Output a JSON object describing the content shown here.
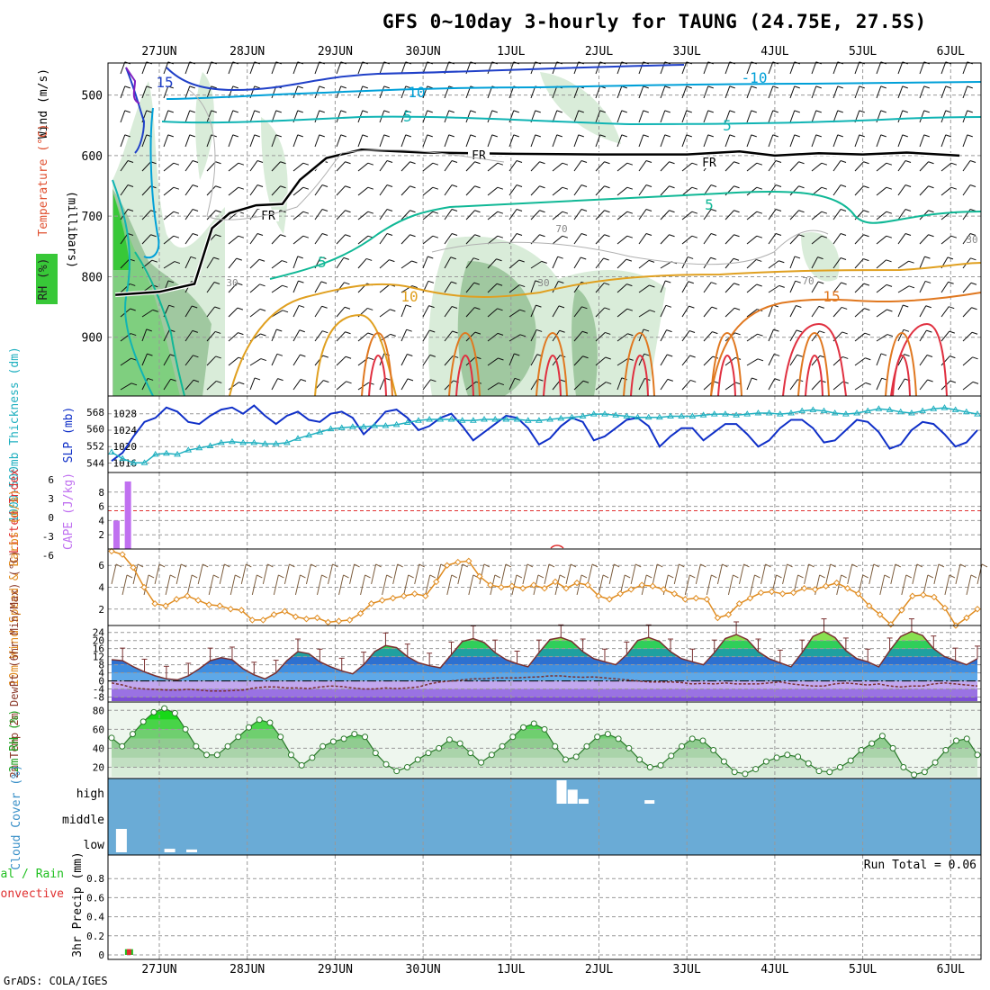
{
  "title": "GFS 0~10day 3-hourly for TAUNG (24.75E, 27.5S)",
  "credit": "GrADS: COLA/IGES",
  "colors": {
    "wind_10": "#00a0d8",
    "wind_15": "#2040c8",
    "wind_5": "#10b4b4",
    "temp_5": "#10b896",
    "freezing": "#000000",
    "temp_10": "#e0a020",
    "temp_15": "#e07820",
    "temp_20": "#e03040",
    "rh_light": "#d9ecd9",
    "rh_mid": "#a0c8a0",
    "rh_dark": "#38c838",
    "slp": "#1030c8",
    "thickness": "#20b0c0",
    "cape": "#c070f0",
    "lifted": "#e03030",
    "wind10": "#e08c20",
    "barb": "#7a5a3a",
    "cloud": "#6aabd6",
    "rain_total": "#20c020",
    "rain_conv": "#e03030"
  },
  "chart_data": [
    {
      "panel": "upper-air",
      "type": "contour",
      "ylabel": "(millibars)",
      "legend": [
        "Wind (m/s)",
        "Temperature (°C)",
        "RH (%)"
      ],
      "x_ticks": [
        "27JUN",
        "28JUN",
        "29JUN",
        "30JUN",
        "1JUL",
        "2JUL",
        "3JUL",
        "4JUL",
        "5JUL",
        "6JUL"
      ],
      "y_ticks": [
        500,
        600,
        700,
        800,
        900
      ],
      "ylim": [
        1000,
        450
      ],
      "contour_labels": {
        "wind": [
          "15",
          "10",
          "-10",
          "5",
          "5"
        ],
        "temperature": [
          "5",
          "5",
          "10",
          "15"
        ],
        "freezing": [
          "FR",
          "FR",
          "FR"
        ],
        "rh": [
          "30",
          "30",
          "70",
          "70",
          "30"
        ]
      },
      "freezing_level_mb": [
        [
          0.0,
          830
        ],
        [
          0.5,
          825
        ],
        [
          0.9,
          812
        ],
        [
          1.1,
          720
        ],
        [
          1.3,
          695
        ],
        [
          1.6,
          682
        ],
        [
          1.9,
          680
        ],
        [
          2.1,
          640
        ],
        [
          2.4,
          604
        ],
        [
          2.8,
          590
        ],
        [
          3.5,
          595
        ],
        [
          4.5,
          597
        ],
        [
          5.5,
          598
        ],
        [
          6.5,
          598
        ],
        [
          7.1,
          593
        ],
        [
          7.5,
          600
        ],
        [
          8.0,
          596
        ],
        [
          8.5,
          598
        ],
        [
          9.0,
          595
        ],
        [
          9.6,
          600
        ]
      ]
    },
    {
      "panel": "thickness-slp",
      "type": "line",
      "ylabel_left": "1000-500mb Thickness (dm)",
      "ylabel_right": "SLP (mb)",
      "y_ticks_left": [
        544,
        552,
        560,
        568
      ],
      "y_ticks_right": [
        1016,
        1020,
        1024,
        1028
      ],
      "series": [
        {
          "name": "SLP (mb)",
          "ylim": [
            1015,
            1031
          ],
          "values": [
            1016.5,
            1018.5,
            1022.5,
            1026.0,
            1027.0,
            1029.5,
            1028.5,
            1026.0,
            1025.5,
            1027.5,
            1029.0,
            1029.5,
            1028.0,
            1030.0,
            1027.5,
            1025.5,
            1027.5,
            1028.5,
            1026.5,
            1026.0,
            1028.0,
            1028.5,
            1027.0,
            1023.0,
            1025.5,
            1028.5,
            1029.0,
            1027.0,
            1024.0,
            1025.0,
            1027.0,
            1028.0,
            1025.0,
            1021.5,
            1023.5,
            1025.5,
            1027.5,
            1027.0,
            1024.5,
            1020.5,
            1022.0,
            1025.0,
            1027.0,
            1026.0,
            1021.5,
            1022.5,
            1024.5,
            1026.5,
            1027.0,
            1025.0,
            1020.0,
            1022.5,
            1024.5,
            1024.5,
            1021.5,
            1023.5,
            1025.5,
            1025.5,
            1023.0,
            1020.0,
            1021.5,
            1024.5,
            1026.5,
            1026.5,
            1024.5,
            1021.0,
            1021.5,
            1024.0,
            1026.5,
            1026.0,
            1023.5,
            1019.5,
            1020.5,
            1024.0,
            1026.0,
            1025.5,
            1023.0,
            1020.0,
            1021.0,
            1024.0
          ]
        },
        {
          "name": "1000-500mb Thickness (dm)",
          "ylim": [
            542,
            573
          ],
          "values": [
            549.0,
            546.0,
            544.0,
            544.0,
            548.0,
            548.5,
            548.0,
            550.0,
            551.0,
            552.0,
            553.5,
            554.0,
            553.5,
            553.5,
            553.0,
            553.0,
            553.5,
            555.5,
            557.0,
            558.5,
            560.0,
            560.5,
            561.0,
            561.0,
            561.5,
            561.5,
            562.0,
            563.0,
            564.0,
            564.5,
            564.5,
            564.5,
            564.0,
            564.0,
            564.5,
            564.5,
            564.5,
            564.5,
            564.0,
            564.0,
            564.5,
            565.0,
            565.5,
            566.0,
            567.0,
            567.0,
            566.5,
            566.0,
            565.5,
            565.5,
            565.5,
            566.0,
            566.0,
            566.0,
            566.5,
            567.0,
            567.0,
            566.5,
            567.0,
            567.5,
            567.5,
            567.0,
            567.5,
            568.5,
            569.0,
            568.5,
            567.5,
            567.0,
            567.5,
            568.5,
            569.5,
            569.0,
            568.0,
            567.5,
            568.5,
            569.5,
            570.0,
            569.0,
            568.0,
            567.0
          ]
        }
      ]
    },
    {
      "panel": "cape-li",
      "type": "bar",
      "ylabel_left": "Lifted Index",
      "ylabel_right": "CAPE (J/kg)",
      "y_ticks_left": [
        "6",
        "3",
        "0",
        "-3",
        "-6"
      ],
      "y_ticks_right": [
        2,
        4,
        6,
        8
      ],
      "ylim_cape": [
        0,
        10
      ],
      "cape_values": [
        {
          "t": 0.02,
          "v": 4.0
        },
        {
          "t": 0.15,
          "v": 9.5
        }
      ],
      "lifted_zero_line": 0
    },
    {
      "panel": "wind10",
      "type": "line",
      "ylabel": "10m Wind Speed & Barbs (m/s)",
      "y_ticks": [
        2,
        4,
        6
      ],
      "ylim": [
        0.5,
        7.5
      ],
      "values": [
        7.3,
        7.0,
        5.8,
        4.0,
        2.5,
        2.3,
        2.9,
        3.2,
        2.8,
        2.4,
        2.3,
        2.0,
        1.9,
        1.0,
        1.0,
        1.5,
        1.8,
        1.3,
        1.1,
        1.2,
        0.8,
        0.9,
        1.0,
        1.6,
        2.5,
        2.8,
        3.0,
        3.2,
        3.4,
        3.2,
        4.5,
        6.0,
        6.3,
        6.4,
        5.0,
        4.2,
        4.0,
        4.1,
        3.9,
        4.2,
        3.9,
        4.5,
        3.9,
        4.4,
        4.2,
        3.2,
        2.9,
        3.4,
        3.8,
        4.2,
        4.1,
        3.8,
        3.4,
        2.9,
        3.0,
        2.9,
        1.2,
        1.5,
        2.5,
        3.0,
        3.5,
        3.6,
        3.4,
        3.5,
        3.9,
        3.8,
        4.1,
        4.4,
        3.9,
        3.4,
        2.3,
        1.5,
        0.6,
        1.9,
        3.2,
        3.3,
        3.1,
        2.1,
        0.5,
        1.2,
        2.0
      ]
    },
    {
      "panel": "temperature",
      "type": "area",
      "ylabel": "2m Temp 2m DewPt (6hr Min/Max) (°C)",
      "y_ticks": [
        -8,
        -4,
        0,
        4,
        8,
        12,
        16,
        20,
        24
      ],
      "ylim": [
        -10,
        27
      ],
      "temp_values": [
        10.5,
        10.0,
        7.0,
        4.5,
        2.5,
        1.0,
        0.5,
        2.5,
        6.0,
        10.0,
        11.5,
        10.5,
        6.0,
        3.0,
        1.0,
        4.0,
        10.0,
        14.5,
        13.5,
        9.5,
        7.0,
        5.0,
        3.5,
        8.0,
        14.5,
        17.5,
        16.5,
        12.0,
        9.0,
        7.5,
        6.5,
        13.0,
        19.5,
        21.0,
        19.0,
        14.0,
        10.5,
        8.5,
        7.0,
        14.0,
        20.5,
        21.5,
        19.5,
        14.5,
        11.0,
        9.5,
        8.0,
        13.0,
        20.0,
        21.5,
        19.5,
        14.5,
        11.0,
        9.5,
        8.0,
        14.0,
        21.0,
        23.0,
        20.5,
        14.5,
        11.0,
        9.0,
        7.0,
        14.0,
        22.0,
        24.5,
        21.5,
        15.0,
        11.0,
        9.5,
        7.0,
        15.0,
        22.0,
        24.5,
        22.5,
        16.0,
        12.0,
        10.0,
        8.0,
        11.0
      ],
      "dewpt_values": [
        -1.0,
        -2.0,
        -3.5,
        -4.0,
        -4.2,
        -4.5,
        -4.5,
        -4.2,
        -4.5,
        -5.0,
        -5.0,
        -4.8,
        -4.5,
        -3.5,
        -3.0,
        -3.0,
        -3.5,
        -3.5,
        -3.8,
        -3.0,
        -2.5,
        -2.8,
        -3.5,
        -4.0,
        -4.0,
        -3.5,
        -3.8,
        -3.5,
        -3.0,
        -1.5,
        -0.5,
        0.0,
        0.5,
        1.0,
        1.0,
        1.5,
        1.5,
        1.5,
        1.8,
        2.0,
        2.5,
        2.5,
        2.0,
        1.8,
        2.0,
        1.5,
        1.0,
        0.5,
        0.0,
        -0.5,
        -0.5,
        -0.5,
        -0.8,
        -1.5,
        -1.2,
        -1.5,
        -1.0,
        -1.5,
        -1.5,
        -1.5,
        -1.0,
        -0.5,
        -1.5,
        -2.0,
        -2.5,
        -2.5,
        -1.5,
        -1.0,
        -1.5,
        -2.0,
        -1.5,
        -2.5,
        -3.0,
        -2.5,
        -2.5,
        -1.5,
        -1.0,
        -1.5,
        -2.0,
        -2.5
      ]
    },
    {
      "panel": "rh2m",
      "type": "area",
      "ylabel": "2m RH (%)",
      "y_ticks": [
        20,
        40,
        60,
        80
      ],
      "ylim": [
        10,
        85
      ],
      "values": [
        51,
        42,
        55,
        68,
        78,
        82,
        77,
        60,
        42,
        33,
        33,
        42,
        52,
        62,
        70,
        67,
        52,
        33,
        22,
        30,
        42,
        47,
        50,
        55,
        52,
        35,
        23,
        16,
        20,
        28,
        35,
        40,
        49,
        45,
        35,
        25,
        33,
        42,
        52,
        62,
        66,
        60,
        42,
        28,
        31,
        42,
        52,
        55,
        50,
        40,
        28,
        20,
        22,
        32,
        42,
        50,
        48,
        38,
        26,
        15,
        13,
        18,
        26,
        30,
        33,
        31,
        24,
        16,
        15,
        20,
        27,
        38,
        45,
        53,
        40,
        20,
        12,
        15,
        25,
        38,
        48,
        50,
        33
      ]
    },
    {
      "panel": "cloud",
      "type": "bar",
      "ylabel": "Cloud Cover (%)",
      "y_ticks": [
        "high",
        "middle",
        "low"
      ],
      "bars": [
        {
          "level": "low",
          "t": 0.05,
          "v": 100
        },
        {
          "level": "low",
          "t": 0.6,
          "v": 15
        },
        {
          "level": "low",
          "t": 0.85,
          "v": 12
        },
        {
          "level": "high",
          "t": 5.0,
          "v": 100
        },
        {
          "level": "high",
          "t": 5.125,
          "v": 60
        },
        {
          "level": "high",
          "t": 5.25,
          "v": 20
        },
        {
          "level": "high",
          "t": 6.0,
          "v": 15
        }
      ]
    },
    {
      "panel": "precip",
      "type": "bar",
      "ylabel": "3hr Precip (mm)",
      "legend": [
        "Total / Rain",
        "Convective"
      ],
      "y_ticks": [
        0,
        0.2,
        0.4,
        0.6,
        0.8
      ],
      "ylim": [
        0,
        1.0
      ],
      "run_total_label": "Run Total = 0.06",
      "values": [
        {
          "t": 0.05,
          "total": 0.06,
          "convective": 0.06
        }
      ]
    }
  ]
}
